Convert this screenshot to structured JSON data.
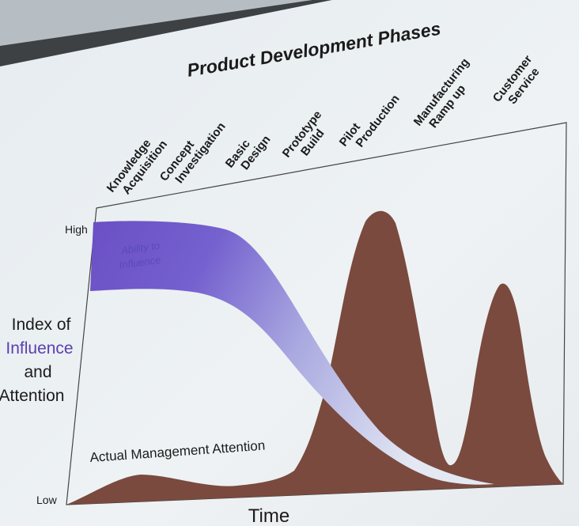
{
  "slide": {
    "title": "Product Development Phases",
    "phases": [
      {
        "line1": "Knowledge",
        "line2": "Acquisition"
      },
      {
        "line1": "Concept",
        "line2": "Investigation"
      },
      {
        "line1": "Basic",
        "line2": "Design"
      },
      {
        "line1": "Prototype",
        "line2": "Build"
      },
      {
        "line1": "Pilot",
        "line2": "Production"
      },
      {
        "line1": "Manufacturing",
        "line2": "Ramp up"
      },
      {
        "line1": "Customer",
        "line2": "Service"
      }
    ],
    "y_axis": {
      "high": "High",
      "low": "Low",
      "title_line1": "Index of",
      "title_line2": "Influence",
      "title_line3": "and",
      "title_line4": "Attention"
    },
    "x_axis_label": "Time",
    "ability_label_line1": "Ability to",
    "ability_label_line2": "Influence",
    "attention_label": "Actual Management Attention",
    "colors": {
      "influence_band": "#6f55c8",
      "influence_band_end": "#dde3f1",
      "attention_area": "#7a4a3e",
      "influence_text": "#5a3fb0"
    }
  }
}
